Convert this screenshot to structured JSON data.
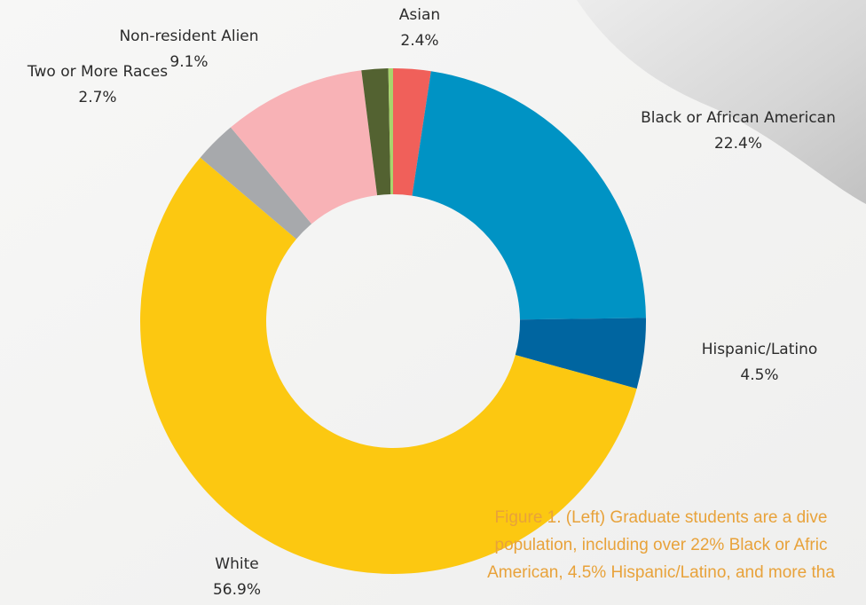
{
  "chart_data": {
    "type": "donut",
    "categories": [
      "Asian",
      "Black or African American",
      "Hispanic/Latino",
      "White",
      "Two or More Races",
      "Non-resident Alien",
      null,
      null
    ],
    "values": [
      2.4,
      22.4,
      4.5,
      56.9,
      2.7,
      9.1,
      1.7,
      0.3
    ],
    "value_labels": [
      "2.4%",
      "22.4%",
      "4.5%",
      "56.9%",
      "2.7%",
      "9.1%",
      null,
      null
    ],
    "colors": [
      "#f0605a",
      "#0093c4",
      "#0065a0",
      "#fcc811",
      "#a7a9ac",
      "#f8b2b6",
      "#536231",
      "#a8d46c"
    ]
  },
  "caption": {
    "lines": [
      "Figure 1. (Left)  Graduate students are a dive",
      "population, including over 22% Black or Afric",
      "American, 4.5% Hispanic/Latino, and more tha"
    ]
  }
}
